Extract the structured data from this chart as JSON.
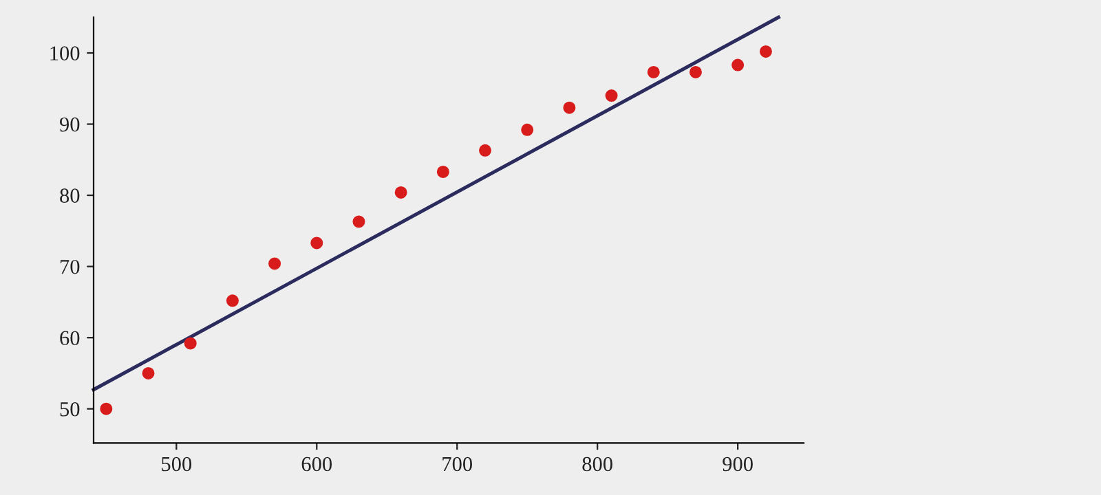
{
  "chart_data": {
    "type": "scatter",
    "xlim": [
      441,
      947
    ],
    "ylim": [
      45.2,
      105
    ],
    "xticks": [
      500,
      600,
      700,
      800,
      900
    ],
    "yticks": [
      50,
      60,
      70,
      80,
      90,
      100
    ],
    "grid": false,
    "series": [
      {
        "marker": "circle",
        "color": "#d81c1c",
        "x": [
          450,
          480,
          510,
          540,
          570,
          600,
          630,
          660,
          690,
          720,
          750,
          780,
          810,
          840,
          870,
          900,
          920
        ],
        "values": [
          50,
          55,
          59.2,
          65.2,
          70.4,
          73.3,
          76.3,
          80.4,
          83.3,
          86.3,
          89.2,
          92.3,
          94,
          97.3,
          97.3,
          98.3,
          100.2
        ]
      },
      {
        "type": "line",
        "color": "#2b2b5e",
        "line_style": "solid",
        "x": [
          441,
          929
        ],
        "values": [
          52.7,
          105
        ]
      }
    ]
  }
}
